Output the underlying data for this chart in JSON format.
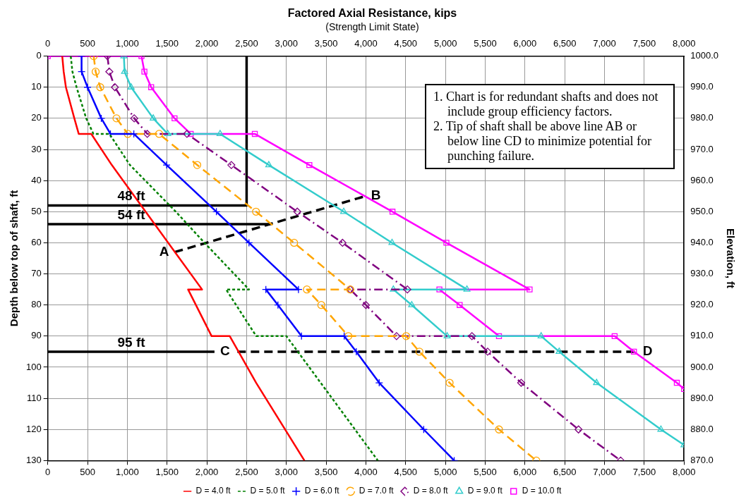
{
  "chart_data": {
    "type": "line",
    "title": "Factored Axial Resistance, kips",
    "subtitle": "(Strength Limit State)",
    "ylabel": "Depth below top of shaft, ft",
    "y2label": "Elevation, ft",
    "xlim": [
      0,
      8000
    ],
    "xticks": [
      0,
      {
        "value": 500,
        "label": "500"
      },
      {
        "value": 1000,
        "label": "1,000"
      },
      {
        "value": 1500,
        "label": "1,500"
      },
      {
        "value": 2000,
        "label": "2,000"
      },
      {
        "value": 2500,
        "label": "2,500"
      },
      {
        "value": 3000,
        "label": "3,000"
      },
      {
        "value": 3500,
        "label": "3,500"
      },
      {
        "value": 4000,
        "label": "4,000"
      },
      {
        "value": 4500,
        "label": "4,500"
      },
      {
        "value": 5000,
        "label": "5,000"
      },
      {
        "value": 5500,
        "label": "5,500"
      },
      {
        "value": 6000,
        "label": "6,000"
      },
      {
        "value": 6500,
        "label": "6,500"
      },
      {
        "value": 7000,
        "label": "7,000"
      },
      {
        "value": 7500,
        "label": "7,500"
      },
      {
        "value": 8000,
        "label": "8,000"
      }
    ],
    "x2lim": [
      0,
      8000
    ],
    "x2ticks": [
      0,
      {
        "value": 500,
        "label": "500"
      },
      {
        "value": 1000,
        "label": "1,000"
      },
      {
        "value": 1500,
        "label": "1,500"
      },
      {
        "value": 2000,
        "label": "2,000"
      },
      {
        "value": 2500,
        "label": "2,500"
      },
      {
        "value": 3000,
        "label": "3,000"
      },
      {
        "value": 3500,
        "label": "3,500"
      },
      {
        "value": 4000,
        "label": "4,000"
      },
      {
        "value": 4500,
        "label": "4,500"
      },
      {
        "value": 5000,
        "label": "5,000"
      },
      {
        "value": 5500,
        "label": "5,500"
      },
      {
        "value": 6000,
        "label": "6,000"
      },
      {
        "value": 6500,
        "label": "6,500"
      },
      {
        "value": 7000,
        "label": "7,000"
      },
      {
        "value": 7500,
        "label": "7,500"
      },
      {
        "value": 8000,
        "label": "8,000"
      }
    ],
    "ylim": [
      130,
      0
    ],
    "yticks": [
      0,
      10,
      20,
      30,
      40,
      50,
      60,
      70,
      80,
      90,
      100,
      110,
      120,
      130
    ],
    "y2lim": [
      870,
      1000
    ],
    "y2ticks": [
      {
        "value": 870,
        "label": "870.0"
      },
      {
        "value": 880,
        "label": "880.0"
      },
      {
        "value": 890,
        "label": "890.0"
      },
      {
        "value": 900,
        "label": "900.0"
      },
      {
        "value": 910,
        "label": "910.0"
      },
      {
        "value": 920,
        "label": "920.0"
      },
      {
        "value": 930,
        "label": "930.0"
      },
      {
        "value": 940,
        "label": "940.0"
      },
      {
        "value": 950,
        "label": "950.0"
      },
      {
        "value": 960,
        "label": "960.0"
      },
      {
        "value": 970,
        "label": "970.0"
      },
      {
        "value": 980,
        "label": "980.0"
      },
      {
        "value": 990,
        "label": "990.0"
      },
      {
        "value": 1000,
        "label": "1000.0"
      }
    ],
    "grid": true,
    "legend": "bottom",
    "series": [
      {
        "name": "D = 4.0 ft",
        "color": "#ff0000",
        "marker": "none",
        "line_style": "solid",
        "x": [
          182,
          200,
          228,
          334,
          389,
          547,
          805,
          1230,
          1940,
          1764,
          2060,
          2288,
          2620,
          3227
        ],
        "values": [
          0,
          5,
          10,
          20,
          25,
          25,
          35,
          50,
          75,
          75,
          90,
          90,
          105,
          130
        ]
      },
      {
        "name": "D = 5.0 ft",
        "color": "#008000",
        "marker": "none",
        "line_style": "dotted",
        "x": [
          289,
          310,
          362,
          483,
          574,
          775,
          1033,
          1610,
          1970,
          2530,
          2242,
          2621,
          3000,
          4150
        ],
        "values": [
          0,
          5,
          10,
          20,
          25,
          25,
          35,
          50,
          60,
          75,
          75,
          90,
          90,
          130
        ]
      },
      {
        "name": "D = 6.0 ft",
        "color": "#0000ff",
        "marker": "cross",
        "line_style": "solid",
        "x": [
          425,
          425,
          500,
          673,
          788,
          1082,
          1494,
          2120,
          2530,
          3152,
          2742,
          2894,
          3190,
          3727,
          3879,
          4167,
          4727,
          5110
        ],
        "values": [
          0,
          5,
          10,
          20,
          25,
          25,
          35,
          50,
          60,
          75,
          75,
          80,
          90,
          90,
          95,
          105,
          120,
          130
        ]
      },
      {
        "name": "D = 7.0 ft",
        "color": "#ffa500",
        "marker": "circle",
        "line_style": "dashed",
        "x": [
          577,
          602,
          660,
          864,
          1006,
          1400,
          1879,
          2618,
          3097,
          3803,
          3258,
          3439,
          3779,
          4506,
          4673,
          5052,
          5673,
          6142
        ],
        "values": [
          0,
          5,
          10,
          20,
          25,
          25,
          35,
          50,
          60,
          75,
          75,
          80,
          90,
          90,
          95,
          105,
          120,
          130
        ]
      },
      {
        "name": "D = 8.0 ft",
        "color": "#800080",
        "marker": "diamond",
        "line_style": "dashdot",
        "x": [
          750,
          774,
          844,
          1087,
          1251,
          1750,
          2308,
          3137,
          3706,
          4521,
          3803,
          4000,
          4385,
          5333,
          5530,
          5952,
          6673,
          7203
        ],
        "values": [
          0,
          5,
          10,
          20,
          25,
          25,
          35,
          50,
          60,
          75,
          75,
          80,
          90,
          90,
          95,
          105,
          120,
          130
        ]
      },
      {
        "name": "D = 9.0 ft",
        "color": "#33cccc",
        "marker": "triangle",
        "line_style": "solid",
        "x": [
          957,
          966,
          1048,
          1326,
          1508,
          2166,
          2779,
          3721,
          4328,
          5270,
          4345,
          4576,
          5021,
          6203,
          6430,
          6900,
          7709,
          8000
        ],
        "values": [
          0,
          5,
          10,
          20,
          25,
          25,
          35,
          50,
          60,
          75,
          75,
          80,
          90,
          90,
          95,
          105,
          120,
          125
        ]
      },
      {
        "name": "D = 10.0 ft",
        "color": "#ff00ff",
        "marker": "square",
        "line_style": "solid",
        "x": [
          0,
          1178,
          1215,
          1300,
          1594,
          1797,
          2603,
          3289,
          4334,
          5012,
          6058,
          4924,
          5179,
          5673,
          7127,
          7370,
          7909,
          8000
        ],
        "values": [
          0,
          0,
          5,
          10,
          20,
          25,
          25,
          35,
          50,
          60,
          75,
          75,
          80,
          90,
          90,
          95,
          105,
          107
        ]
      },
      {
        "color": "#000000",
        "marker": "none",
        "line_style": "solid",
        "x": [
          0,
          2500,
          2500
        ],
        "values": [
          48,
          48,
          0
        ]
      },
      {
        "color": "#000000",
        "marker": "none",
        "line_style": "solid",
        "x": [
          0,
          2800
        ],
        "values": [
          54,
          54
        ]
      },
      {
        "color": "#000000",
        "marker": "none",
        "line_style": "solid",
        "x": [
          0,
          2096
        ],
        "values": [
          95,
          95
        ]
      },
      {
        "color": "#000000",
        "marker": "none",
        "line_style": "dashed",
        "x": [
          1595,
          3994
        ],
        "values": [
          63,
          45
        ]
      },
      {
        "color": "#000000",
        "marker": "none",
        "line_style": "dashed",
        "x": [
          2384,
          7411
        ],
        "values": [
          95,
          95
        ]
      }
    ],
    "annotations": [
      {
        "text": "48 ft",
        "x": 1050,
        "y": 48
      },
      {
        "text": "54 ft",
        "x": 1050,
        "y": 54
      },
      {
        "text": "95 ft",
        "x": 1050,
        "y": 95
      },
      {
        "text": "A",
        "x": 1595,
        "y": 63
      },
      {
        "text": "B",
        "x": 3994,
        "y": 45
      },
      {
        "text": "C",
        "x": 2096,
        "y": 95
      },
      {
        "text": "D",
        "x": 7411,
        "y": 95
      },
      "1. Chart is for redundant shafts and does not include group efficiency factors.",
      "2. Tip of shaft shall be above line AB or below line CD to minimize potential for punching failure."
    ]
  }
}
